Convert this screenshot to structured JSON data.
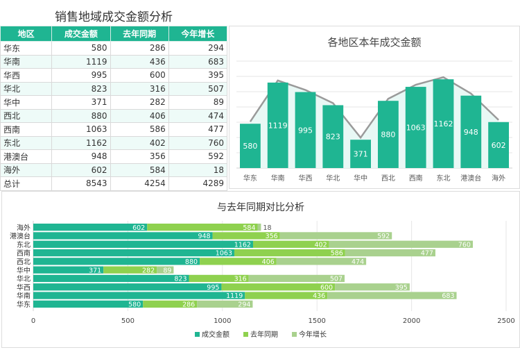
{
  "table": {
    "title": "销售地域成交金额分析",
    "headers": [
      "地区",
      "成交金额",
      "去年同期",
      "今年增长"
    ],
    "rows": [
      [
        "华东",
        "580",
        "286",
        "294"
      ],
      [
        "华南",
        "1119",
        "436",
        "683"
      ],
      [
        "华西",
        "995",
        "600",
        "395"
      ],
      [
        "华北",
        "823",
        "316",
        "507"
      ],
      [
        "华中",
        "371",
        "282",
        "89"
      ],
      [
        "西北",
        "880",
        "406",
        "474"
      ],
      [
        "西南",
        "1063",
        "586",
        "477"
      ],
      [
        "东北",
        "1162",
        "402",
        "760"
      ],
      [
        "港澳台",
        "948",
        "356",
        "592"
      ],
      [
        "海外",
        "602",
        "584",
        "18"
      ],
      [
        "总计",
        "8543",
        "4254",
        "4289"
      ]
    ]
  },
  "chart_data": [
    {
      "type": "bar",
      "title": "各地区本年成交金额",
      "categories": [
        "华东",
        "华南",
        "华西",
        "华北",
        "华中",
        "西北",
        "西南",
        "东北",
        "港澳台",
        "海外"
      ],
      "values": [
        580,
        1119,
        995,
        823,
        371,
        880,
        1063,
        1162,
        948,
        602
      ],
      "overlay": "line-area",
      "ylim": [
        0,
        1400
      ],
      "grid": true,
      "colors": {
        "bar": "#1fb592",
        "area": "#e8f8f5",
        "line": "#9a9a9a"
      }
    },
    {
      "type": "bar",
      "orientation": "horizontal",
      "stacked": true,
      "title": "与去年同期对比分析",
      "categories": [
        "华东",
        "华南",
        "华西",
        "华北",
        "华中",
        "西北",
        "西南",
        "东北",
        "港澳台",
        "海外"
      ],
      "series": [
        {
          "name": "成交金额",
          "values": [
            580,
            1119,
            995,
            823,
            371,
            880,
            1063,
            1162,
            948,
            602
          ],
          "color": "#1fb592"
        },
        {
          "name": "去年同期",
          "values": [
            286,
            436,
            600,
            316,
            282,
            406,
            586,
            402,
            356,
            584
          ],
          "color": "#8fd14f"
        },
        {
          "name": "今年增长",
          "values": [
            294,
            683,
            395,
            507,
            89,
            474,
            477,
            760,
            592,
            18
          ],
          "color": "#a9d18e"
        }
      ],
      "xlim": [
        0,
        2500
      ],
      "xticks": [
        0,
        500,
        1000,
        1500,
        2000,
        2500
      ],
      "grid": true,
      "legend": "bottom"
    }
  ]
}
